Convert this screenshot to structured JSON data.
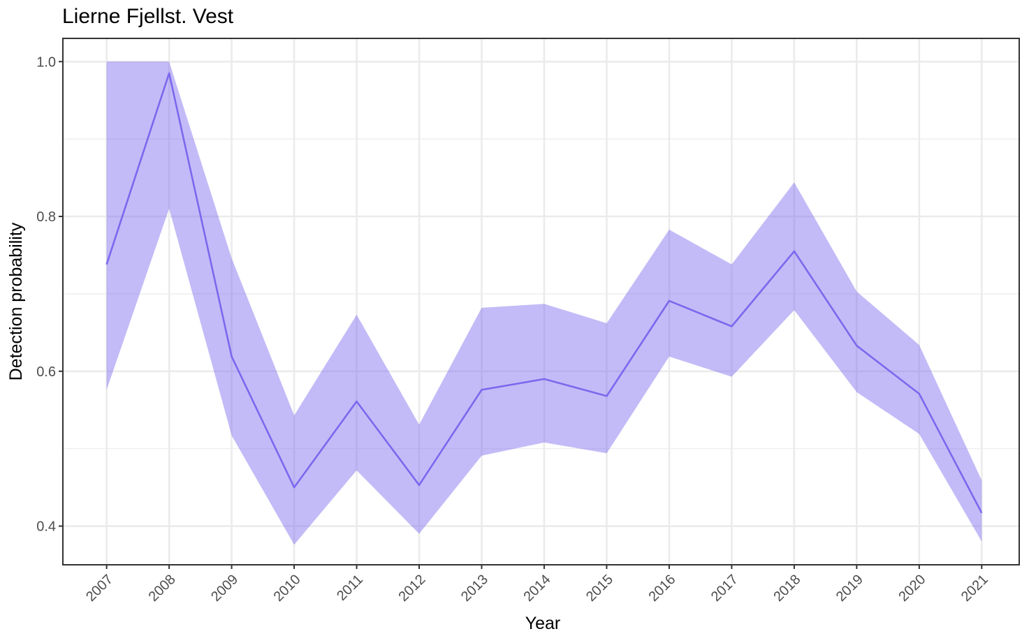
{
  "chart_data": {
    "type": "line",
    "title": "Lierne Fjellst. Vest",
    "xlabel": "Year",
    "ylabel": "Detection probability",
    "x": [
      "2007",
      "2008",
      "2009",
      "2010",
      "2011",
      "2012",
      "2013",
      "2014",
      "2015",
      "2016",
      "2017",
      "2018",
      "2019",
      "2020",
      "2021"
    ],
    "series": [
      {
        "values": [
          0.738,
          0.985,
          0.619,
          0.45,
          0.561,
          0.453,
          0.576,
          0.59,
          0.568,
          0.691,
          0.658,
          0.755,
          0.633,
          0.571,
          0.417
        ],
        "lower": [
          0.576,
          0.81,
          0.517,
          0.376,
          0.472,
          0.39,
          0.491,
          0.508,
          0.494,
          0.619,
          0.593,
          0.679,
          0.573,
          0.519,
          0.38
        ],
        "upper": [
          1.0,
          1.0,
          0.746,
          0.543,
          0.673,
          0.531,
          0.682,
          0.687,
          0.662,
          0.783,
          0.738,
          0.844,
          0.703,
          0.634,
          0.459
        ]
      }
    ],
    "yticks": [
      "0.4",
      "0.6",
      "0.8",
      "1.0"
    ],
    "ylim": [
      0.35,
      1.03
    ],
    "xlim": [
      2006.3,
      2021.6
    ],
    "grid": true,
    "legend": "none",
    "colors": {
      "line": "#7b68ee",
      "ribbon": "#7b68ee",
      "grid": "#ebebeb",
      "border": "#333333"
    }
  }
}
